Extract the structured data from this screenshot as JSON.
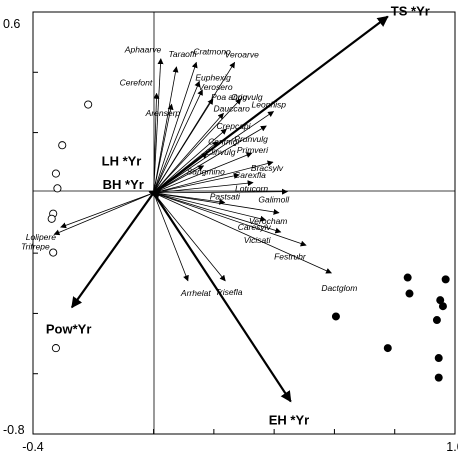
{
  "chart_data": {
    "type": "scatter",
    "subtype": "ordination-biplot",
    "title": "",
    "xlabel": "",
    "ylabel": "",
    "xlim": [
      -0.4,
      1.0
    ],
    "ylim": [
      -0.8,
      0.6
    ],
    "x_ticks": [
      -0.4,
      1.0
    ],
    "y_ticks": [
      0.6,
      -0.8
    ],
    "x_tick_labels": [
      "-0.4",
      "1.0"
    ],
    "y_tick_labels": [
      "0.6",
      "-0.8"
    ],
    "grid": false,
    "environmental_vectors": [
      {
        "label": "TS *Yr",
        "x": 0.777,
        "y": 0.585
      },
      {
        "label": "LH *Yr",
        "x": -0.013,
        "y": 0.004
      },
      {
        "label": "BH *Yr",
        "x": -0.013,
        "y": 0.003
      },
      {
        "label": "Pow*Yr",
        "x": -0.271,
        "y": -0.38
      },
      {
        "label": "EH *Yr",
        "x": 0.455,
        "y": -0.692
      }
    ],
    "species_vectors": [
      {
        "label": "Aphaarve",
        "x": 0.024,
        "y": 0.445
      },
      {
        "label": "Taraoffi",
        "x": 0.076,
        "y": 0.418
      },
      {
        "label": "Cratmono",
        "x": 0.142,
        "y": 0.433
      },
      {
        "label": "Veroarve",
        "x": 0.269,
        "y": 0.433
      },
      {
        "label": "Cerefont",
        "x": 0.01,
        "y": 0.33
      },
      {
        "label": "Arenserp",
        "x": 0.06,
        "y": 0.294
      },
      {
        "label": "Euphexig",
        "x": 0.152,
        "y": 0.37
      },
      {
        "label": "Verosero",
        "x": 0.162,
        "y": 0.342
      },
      {
        "label": "Poa annu",
        "x": 0.197,
        "y": 0.312
      },
      {
        "label": "Origvulg",
        "x": 0.29,
        "y": 0.312
      },
      {
        "label": "Dauccaro",
        "x": 0.232,
        "y": 0.264
      },
      {
        "label": "Leonhisp",
        "x": 0.398,
        "y": 0.27
      },
      {
        "label": "Crepcapi",
        "x": 0.242,
        "y": 0.212
      },
      {
        "label": "Prunvulg",
        "x": 0.374,
        "y": 0.222
      },
      {
        "label": "Centnigr",
        "x": 0.214,
        "y": 0.17
      },
      {
        "label": "Clinvulg",
        "x": 0.178,
        "y": 0.132
      },
      {
        "label": "Sangmino",
        "x": 0.166,
        "y": 0.09
      },
      {
        "label": "Primveri",
        "x": 0.326,
        "y": 0.132
      },
      {
        "label": "Bracsylv",
        "x": 0.396,
        "y": 0.102
      },
      {
        "label": "Carexfla",
        "x": 0.284,
        "y": 0.06
      },
      {
        "label": "Lotucorn",
        "x": 0.33,
        "y": 0.034
      },
      {
        "label": "Galimoll",
        "x": 0.444,
        "y": 0.004
      },
      {
        "label": "Pastsati",
        "x": 0.236,
        "y": -0.032
      },
      {
        "label": "Verocham",
        "x": 0.416,
        "y": -0.066
      },
      {
        "label": "Caresylv",
        "x": 0.372,
        "y": -0.09
      },
      {
        "label": "Vicisati",
        "x": 0.422,
        "y": -0.13
      },
      {
        "label": "Festrubr",
        "x": 0.506,
        "y": -0.174
      },
      {
        "label": "Dactglom",
        "x": 0.59,
        "y": -0.266
      },
      {
        "label": "Lolipere",
        "x": -0.308,
        "y": -0.114
      },
      {
        "label": "Trifrepe",
        "x": -0.33,
        "y": -0.138
      },
      {
        "label": "Arrhelat",
        "x": 0.114,
        "y": -0.292
      },
      {
        "label": "Trisefla",
        "x": 0.238,
        "y": -0.292
      }
    ],
    "samples_open": [
      {
        "x": -0.217,
        "y": 0.293
      },
      {
        "x": -0.303,
        "y": 0.158
      },
      {
        "x": -0.324,
        "y": 0.064
      },
      {
        "x": -0.319,
        "y": 0.015
      },
      {
        "x": -0.333,
        "y": -0.069
      },
      {
        "x": -0.338,
        "y": -0.086
      },
      {
        "x": -0.333,
        "y": -0.198
      },
      {
        "x": -0.324,
        "y": -0.515
      }
    ],
    "samples_filled": [
      {
        "x": 0.843,
        "y": -0.281
      },
      {
        "x": 0.969,
        "y": -0.287
      },
      {
        "x": 0.849,
        "y": -0.334
      },
      {
        "x": 0.951,
        "y": -0.356
      },
      {
        "x": 0.96,
        "y": -0.376
      },
      {
        "x": 0.605,
        "y": -0.41
      },
      {
        "x": 0.94,
        "y": -0.422
      },
      {
        "x": 0.777,
        "y": -0.515
      },
      {
        "x": 0.946,
        "y": -0.548
      },
      {
        "x": 0.946,
        "y": -0.613
      }
    ]
  }
}
